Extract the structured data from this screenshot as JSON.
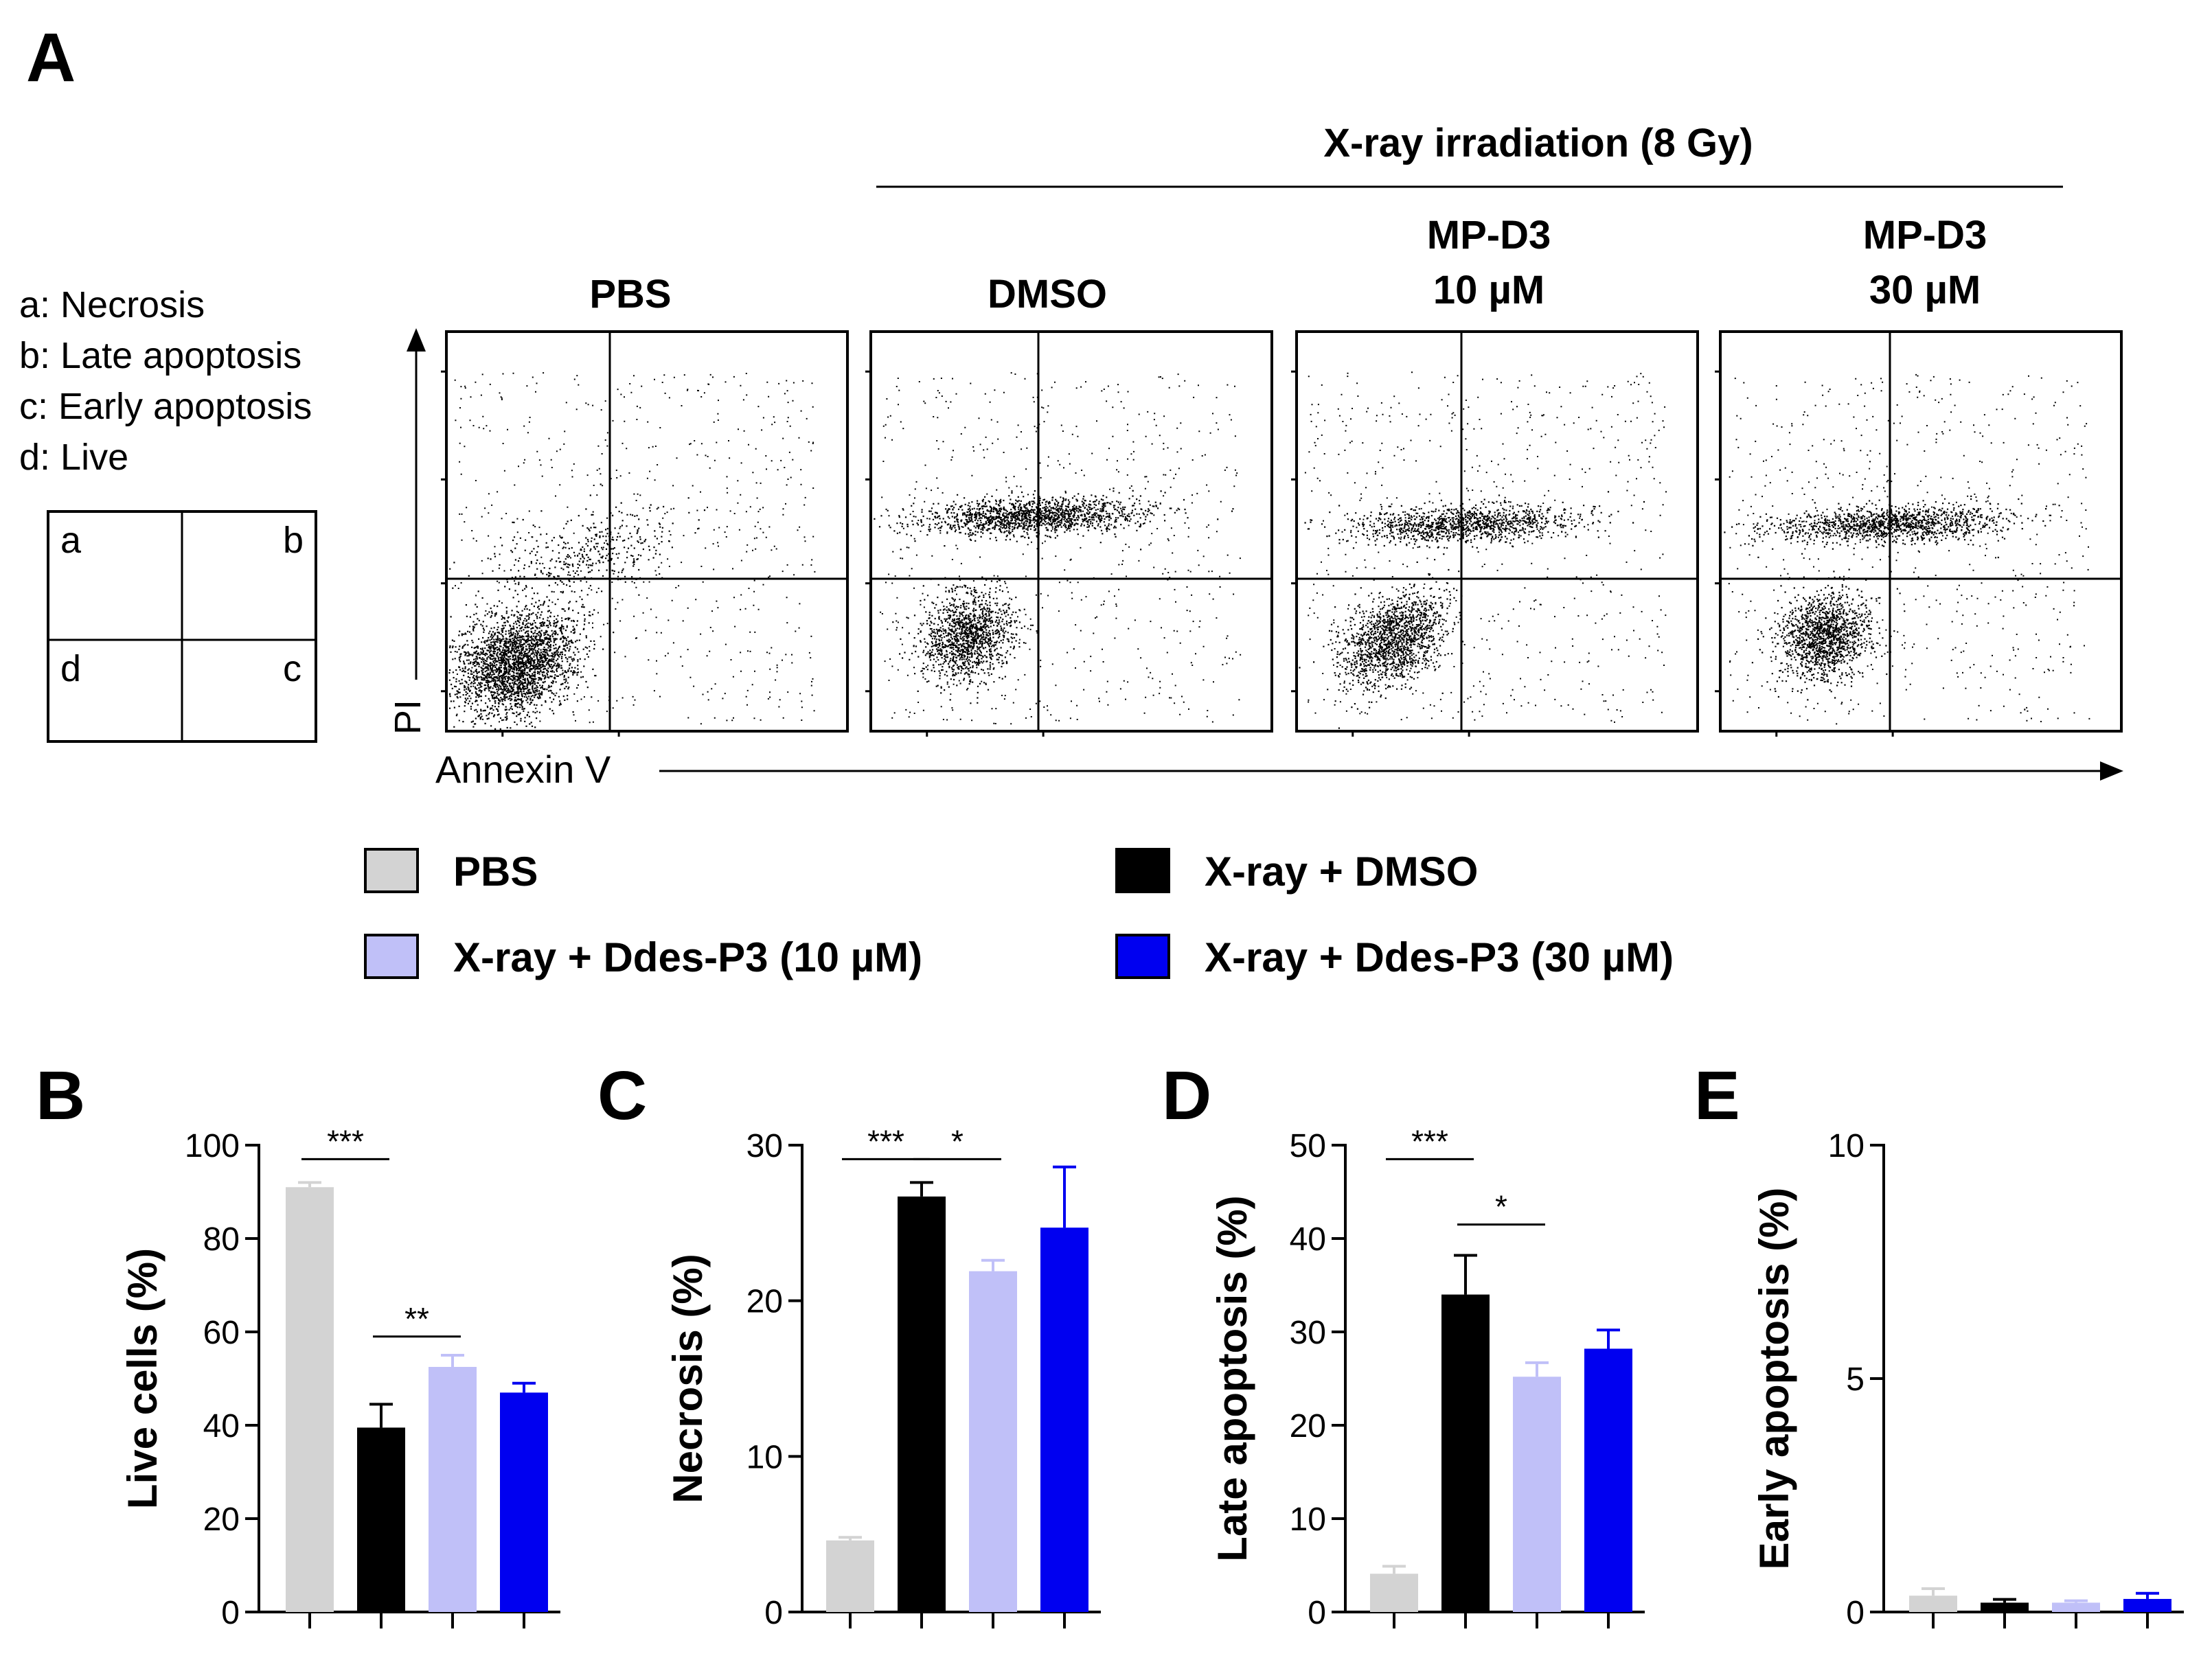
{
  "panel_a": {
    "letter": "A",
    "group_header": "X-ray irradiation (8 Gy)",
    "legend_items": [
      "a: Necrosis",
      "b: Late apoptosis",
      "c: Early apoptosis",
      "d: Live"
    ],
    "quadrant_letters": [
      "a",
      "b",
      "d",
      "c"
    ],
    "conditions": [
      {
        "line1": "PBS",
        "line2": ""
      },
      {
        "line1": "DMSO",
        "line2": ""
      },
      {
        "line1": "MP-D3",
        "line2": "10 µM"
      },
      {
        "line1": "MP-D3",
        "line2": "30 µM"
      }
    ],
    "y_axis_label": "PI",
    "x_axis_label": "Annexin V"
  },
  "legend": {
    "items": [
      {
        "label": "PBS",
        "color": "#d3d3d3"
      },
      {
        "label": "X-ray + DMSO",
        "color": "#000000"
      },
      {
        "label": "X-ray + Ddes-P3 (10 µM)",
        "color": "#c0c0f8"
      },
      {
        "label": "X-ray + Ddes-P3 (30 µM)",
        "color": "#0000f0"
      }
    ]
  },
  "chart_data": [
    {
      "letter": "B",
      "type": "bar",
      "ylabel": "Live cells (%)",
      "ylim": [
        0,
        100
      ],
      "ticks": [
        0,
        20,
        40,
        60,
        80,
        100
      ],
      "tick_labels": [
        "0",
        "20",
        "40",
        "60",
        "80",
        "100"
      ],
      "categories": [
        "PBS",
        "X-ray + DMSO",
        "X-ray + Ddes-P3 (10 µM)",
        "X-ray + Ddes-P3 (30 µM)"
      ],
      "values": [
        91,
        39.5,
        52.5,
        47
      ],
      "errors": [
        1,
        5,
        2.5,
        2
      ],
      "significance": [
        {
          "from": 0,
          "to": 1,
          "label": "***",
          "y": 97
        },
        {
          "from": 1,
          "to": 2,
          "label": "**",
          "y": 59
        }
      ]
    },
    {
      "letter": "C",
      "type": "bar",
      "ylabel": "Necrosis (%)",
      "ylim": [
        0,
        30
      ],
      "ticks": [
        0,
        10,
        20,
        30
      ],
      "tick_labels": [
        "0",
        "10",
        "20",
        "30"
      ],
      "categories": [
        "PBS",
        "X-ray + DMSO",
        "X-ray + Ddes-P3 (10 µM)",
        "X-ray + Ddes-P3 (30 µM)"
      ],
      "values": [
        4.6,
        26.7,
        21.9,
        24.7
      ],
      "errors": [
        0.2,
        0.9,
        0.7,
        3.9
      ],
      "significance": [
        {
          "from": 0,
          "to": 1,
          "label": "***",
          "y": 29.1
        },
        {
          "from": 1,
          "to": 2,
          "label": "*",
          "y": 29.1
        }
      ]
    },
    {
      "letter": "D",
      "type": "bar",
      "ylabel": "Late apoptosis (%)",
      "ylim": [
        0,
        50
      ],
      "ticks": [
        0,
        10,
        20,
        30,
        40,
        50
      ],
      "tick_labels": [
        "0",
        "10",
        "20",
        "30",
        "40",
        "50"
      ],
      "categories": [
        "PBS",
        "X-ray + DMSO",
        "X-ray + Ddes-P3 (10 µM)",
        "X-ray + Ddes-P3 (30 µM)"
      ],
      "values": [
        4.1,
        34,
        25.2,
        28.2
      ],
      "errors": [
        0.8,
        4.2,
        1.5,
        2
      ],
      "significance": [
        {
          "from": 0,
          "to": 1,
          "label": "***",
          "y": 48.5
        },
        {
          "from": 1,
          "to": 2,
          "label": "*",
          "y": 41.5
        }
      ]
    },
    {
      "letter": "E",
      "type": "bar",
      "ylabel": "Early apoptosis (%)",
      "ylim": [
        0,
        10
      ],
      "ticks": [
        0,
        5,
        10
      ],
      "tick_labels": [
        "0",
        "5",
        "10"
      ],
      "categories": [
        "PBS",
        "X-ray + DMSO",
        "X-ray + Ddes-P3 (10 µM)",
        "X-ray + Ddes-P3 (30 µM)"
      ],
      "values": [
        0.35,
        0.2,
        0.2,
        0.28
      ],
      "errors": [
        0.15,
        0.07,
        0.04,
        0.12
      ],
      "significance": []
    }
  ]
}
